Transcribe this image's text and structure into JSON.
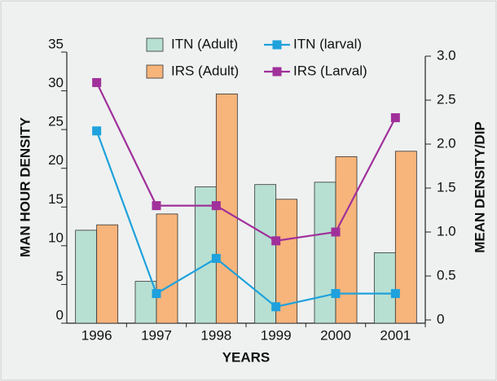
{
  "chart_data": {
    "type": "bar_line",
    "categories": [
      "1996",
      "1997",
      "1998",
      "1999",
      "2000",
      "2001"
    ],
    "series": [
      {
        "name": "ITN (Adult)",
        "type": "bar",
        "color": "#b7e0d3",
        "values": [
          12,
          5.4,
          17.6,
          17.9,
          18.2,
          9.1
        ]
      },
      {
        "name": "IRS (Adult)",
        "type": "bar",
        "color": "#f7b47b",
        "values": [
          12.7,
          14.1,
          29.6,
          16,
          21.5,
          22.2
        ]
      },
      {
        "name": "ITN (larval)",
        "type": "line",
        "axis": "y2",
        "color": "#1ea1dc",
        "values": [
          2.15,
          0.3,
          0.7,
          0.15,
          0.3,
          0.3
        ]
      },
      {
        "name": "IRS (Larval)",
        "type": "line",
        "axis": "y2",
        "color": "#a0309a",
        "values": [
          2.7,
          1.3,
          1.3,
          0.9,
          1.0,
          2.3
        ]
      }
    ],
    "x_label": "YEARS",
    "y_label": "MAN HOUR DENSITY",
    "y2_label": "MEAN DENSITY/DIP",
    "ylim": [
      0,
      35
    ],
    "yticks": [
      0,
      5,
      10,
      15,
      20,
      25,
      30,
      35
    ],
    "y2lim": [
      0,
      3
    ],
    "y2ticks": [
      0,
      {
        "value": 0.5,
        "label": "0.5"
      },
      {
        "value": 1,
        "label": "1.0"
      },
      {
        "value": 1.5,
        "label": "1.5"
      },
      {
        "value": 2,
        "label": "2.0"
      },
      {
        "value": 2.5,
        "label": "2.5"
      },
      {
        "value": 3,
        "label": "3.0"
      }
    ],
    "legend": "top"
  }
}
